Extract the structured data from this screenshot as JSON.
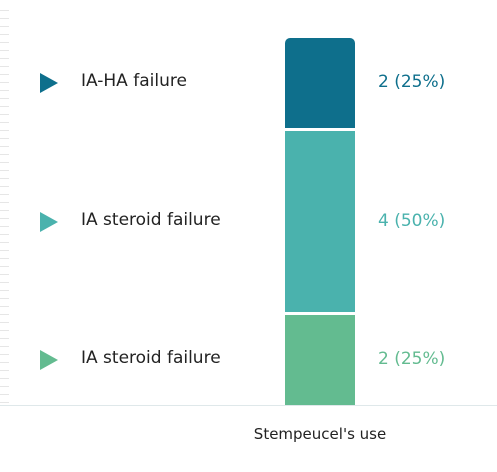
{
  "chart_data": {
    "type": "bar",
    "stacked": true,
    "categories": [
      "Stempeucel's use"
    ],
    "series": [
      {
        "name": "IA-HA failure",
        "value": 2,
        "label": "2 (25%)",
        "color": "#0e6f8c"
      },
      {
        "name": "IA steroid failure",
        "value": 4,
        "label": "4 (50%)",
        "color": "#4ab2ad"
      },
      {
        "name": "IA steroid failure",
        "value": 2,
        "label": "2 (25%)",
        "color": "#63bb90"
      }
    ],
    "total": 8,
    "legend": "left",
    "grid": false
  }
}
